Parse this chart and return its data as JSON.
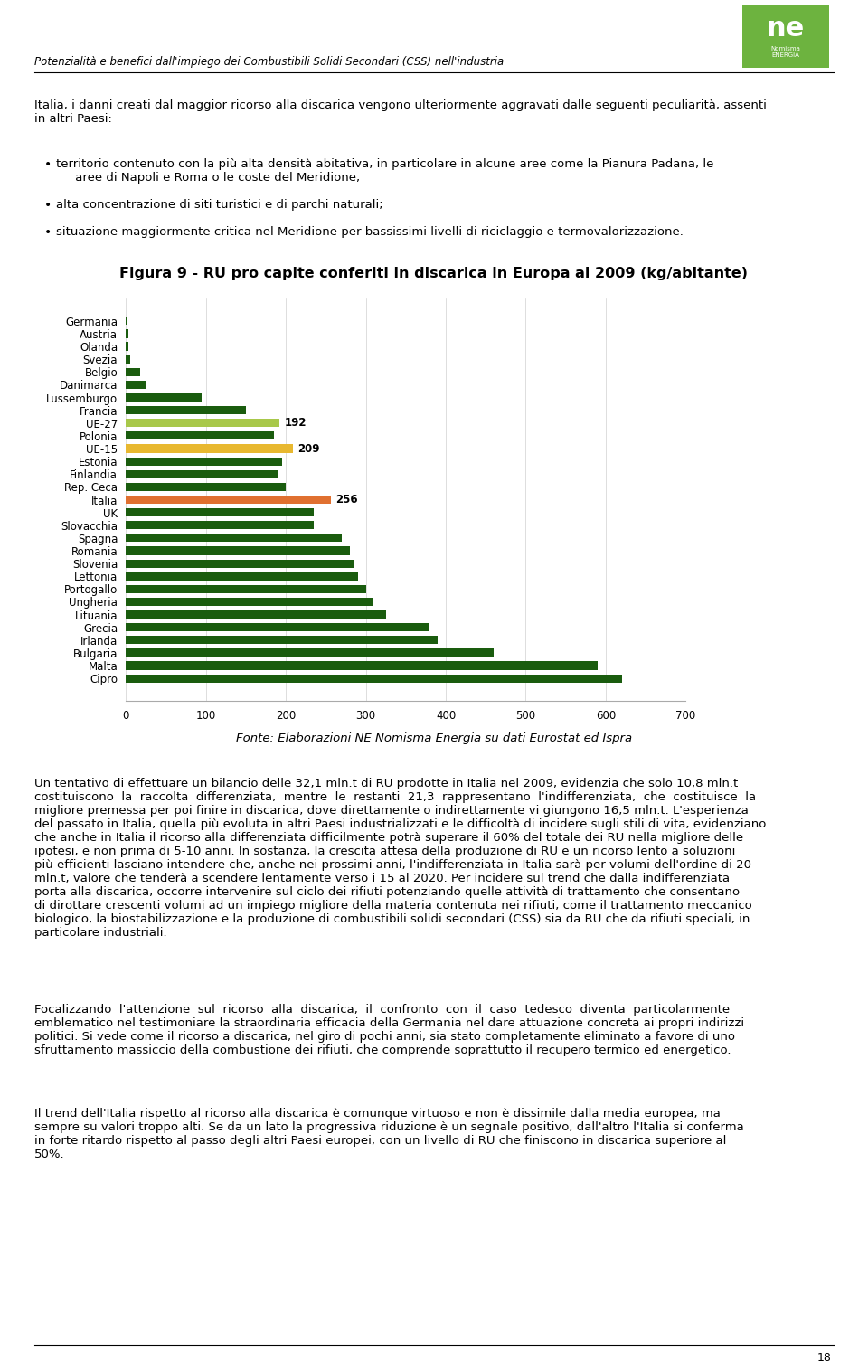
{
  "title": "Figura 9 - RU pro capite conferiti in discarica in Europa al 2009 (kg/abitante)",
  "source": "Fonte: Elaborazioni NE Nomisma Energia su dati Eurostat ed Ispra",
  "countries": [
    "Germania",
    "Austria",
    "Olanda",
    "Svezia",
    "Belgio",
    "Danimarca",
    "Lussemburgo",
    "Francia",
    "UE-27",
    "Polonia",
    "UE-15",
    "Estonia",
    "Finlandia",
    "Rep. Ceca",
    "Italia",
    "UK",
    "Slovacchia",
    "Spagna",
    "Romania",
    "Slovenia",
    "Lettonia",
    "Portogallo",
    "Ungheria",
    "Lituania",
    "Grecia",
    "Irlanda",
    "Bulgaria",
    "Malta",
    "Cipro"
  ],
  "values": [
    2,
    3,
    3,
    5,
    18,
    25,
    95,
    150,
    192,
    185,
    209,
    195,
    190,
    200,
    256,
    235,
    235,
    270,
    280,
    285,
    290,
    300,
    310,
    325,
    380,
    390,
    460,
    590,
    620
  ],
  "colors": [
    "#1a5c0e",
    "#1a5c0e",
    "#1a5c0e",
    "#1a5c0e",
    "#1a5c0e",
    "#1a5c0e",
    "#1a5c0e",
    "#1a5c0e",
    "#a8c84a",
    "#1a5c0e",
    "#e8b830",
    "#1a5c0e",
    "#1a5c0e",
    "#1a5c0e",
    "#e07030",
    "#1a5c0e",
    "#1a5c0e",
    "#1a5c0e",
    "#1a5c0e",
    "#1a5c0e",
    "#1a5c0e",
    "#1a5c0e",
    "#1a5c0e",
    "#1a5c0e",
    "#1a5c0e",
    "#1a5c0e",
    "#1a5c0e",
    "#1a5c0e",
    "#1a5c0e"
  ],
  "annotations": [
    {
      "index": 8,
      "label": "192"
    },
    {
      "index": 10,
      "label": "209"
    },
    {
      "index": 14,
      "label": "256"
    }
  ],
  "xlim": [
    0,
    700
  ],
  "xticks": [
    0,
    100,
    200,
    300,
    400,
    500,
    600,
    700
  ],
  "bar_height": 0.65,
  "fig_bgcolor": "#ffffff",
  "title_fontsize": 11.5,
  "label_fontsize": 8.5,
  "tick_fontsize": 8.5,
  "source_fontsize": 9.5,
  "header_text": "Potenzialità e benefici dall'impiego dei Combustibili Solidi Secondari (CSS) nell'industria",
  "footer_page": "18",
  "body_fontsize": 9.5,
  "header_fontsize": 8.5
}
